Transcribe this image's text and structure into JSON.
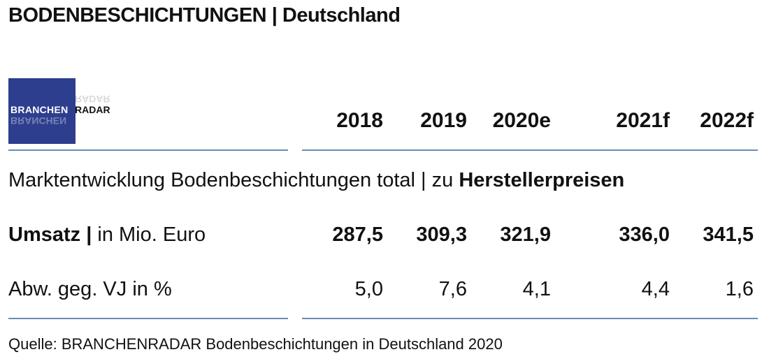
{
  "header": {
    "title": "BODENBESCHICHTUNGEN",
    "separator": "|",
    "subtitle": "Deutschland"
  },
  "logo": {
    "part1": "BRANCHEN",
    "part2": "RADAR",
    "background_color": "#2d3e8e"
  },
  "table": {
    "section_label_prefix": "Marktentwicklung Bodenbeschichtungen total | zu ",
    "section_label_bold": "Herstellerpreisen",
    "rows": [
      {
        "label_bold": "Umsatz |",
        "label_rest": " in Mio. Euro"
      },
      {
        "label_bold": "",
        "label_rest": "Abw. geg. VJ in %"
      }
    ]
  },
  "chart_data": {
    "type": "table",
    "columns": [
      "2018",
      "2019",
      "2020e",
      "2021f",
      "2022f"
    ],
    "rows": [
      {
        "name": "Umsatz | in Mio. Euro",
        "values": [
          "287,5",
          "309,3",
          "321,9",
          "336,0",
          "341,5"
        ]
      },
      {
        "name": "Abw. geg. VJ in %",
        "values": [
          "5,0",
          "7,6",
          "4,1",
          "4,4",
          "1,6"
        ]
      }
    ]
  },
  "footer": {
    "source": "Quelle: BRANCHENRADAR Bodenbeschichtungen in Deutschland 2020"
  },
  "colors": {
    "rule": "#6b8bb8",
    "text": "#111111"
  }
}
